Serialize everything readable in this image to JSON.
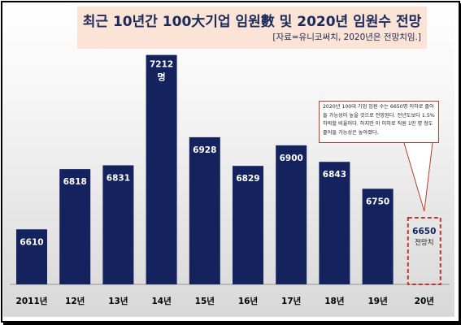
{
  "header": {
    "title": "최근 10년간 100大기업 임원數 및 2020년 임원수 전망",
    "source": "[자료=유니코써치, 2020년은 전망치임.]"
  },
  "note": {
    "text": "2020년 100대 기업 임원 수는 6650명 이하로 줄어들 가능성이 높을 것으로 전망된다. 전년도보다 1.5% 하락할 비율이다. 하지만 이 이하로 직원 1만 명 정도 줄어들 가능성은 높아졌다."
  },
  "chart_data": {
    "type": "bar",
    "categories": [
      "2011년",
      "12년",
      "13년",
      "14년",
      "15년",
      "16년",
      "17년",
      "18년",
      "19년",
      "20년"
    ],
    "values": [
      6610,
      6818,
      6831,
      7212,
      6928,
      6829,
      6900,
      6843,
      6750,
      6650
    ],
    "value_labels": [
      "6610",
      "6818",
      "6831",
      "7212",
      "6928",
      "6829",
      "6900",
      "6843",
      "6750",
      "6650"
    ],
    "highlight_unit": "명",
    "forecast_label": "전망치",
    "colors": {
      "bar": "#14235e",
      "forecast_border": "#c0392b",
      "forecast_text": "#14235e"
    }
  }
}
